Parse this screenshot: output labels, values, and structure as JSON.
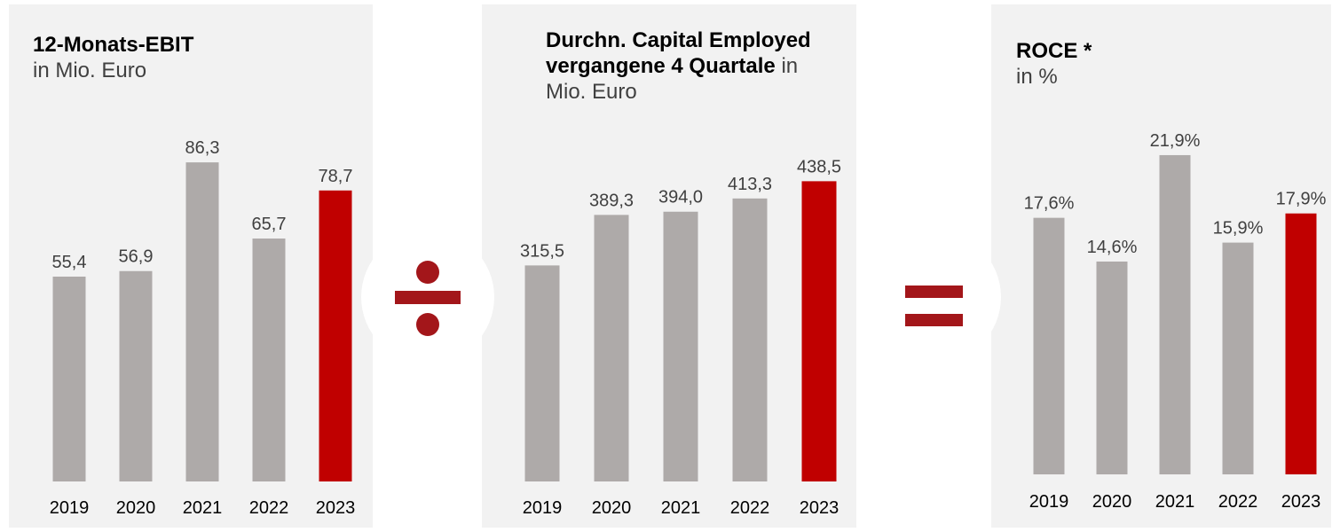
{
  "chart_data": [
    {
      "type": "bar",
      "title": "12-Monats-EBIT",
      "subtitle": "in Mio. Euro",
      "categories": [
        "2019",
        "2020",
        "2021",
        "2022",
        "2023"
      ],
      "values": [
        55.4,
        56.9,
        86.3,
        65.7,
        78.7
      ],
      "value_labels": [
        "55,4",
        "56,9",
        "86,3",
        "65,7",
        "78,7"
      ],
      "colors": [
        "#aeaaa9",
        "#aeaaa9",
        "#aeaaa9",
        "#aeaaa9",
        "#c00000"
      ],
      "ylim": [
        0,
        100
      ]
    },
    {
      "type": "bar",
      "title": "Durchn. Capital Employed vergangene 4 Quartale",
      "subtitle": "in Mio. Euro",
      "categories": [
        "2019",
        "2020",
        "2021",
        "2022",
        "2023"
      ],
      "values": [
        315.5,
        389.3,
        394.0,
        413.3,
        438.5
      ],
      "value_labels": [
        "315,5",
        "389,3",
        "394,0",
        "413,3",
        "438,5"
      ],
      "colors": [
        "#aeaaa9",
        "#aeaaa9",
        "#aeaaa9",
        "#aeaaa9",
        "#c00000"
      ],
      "ylim": [
        0,
        540
      ]
    },
    {
      "type": "bar",
      "title": "ROCE *",
      "subtitle": "in %",
      "categories": [
        "2019",
        "2020",
        "2021",
        "2022",
        "2023"
      ],
      "values": [
        17.6,
        14.6,
        21.9,
        15.9,
        17.9
      ],
      "value_labels": [
        "17,6%",
        "14,6%",
        "21,9%",
        "15,9%",
        "17,9%"
      ],
      "colors": [
        "#aeaaa9",
        "#aeaaa9",
        "#aeaaa9",
        "#aeaaa9",
        "#c00000"
      ],
      "ylim": [
        0,
        25
      ]
    }
  ]
}
